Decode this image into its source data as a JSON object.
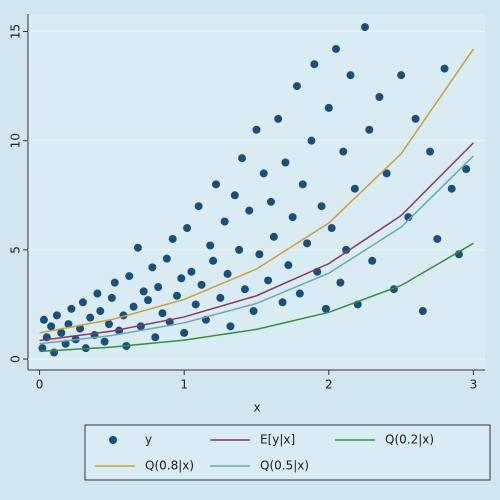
{
  "chart_data": {
    "type": "scatter",
    "x_label": "x",
    "xlim": [
      -0.08,
      3.08
    ],
    "xticks": [
      0,
      1,
      2,
      3
    ],
    "ylim": [
      -0.5,
      15.8
    ],
    "yticks": [
      0,
      5,
      10,
      15
    ],
    "grid": true,
    "series": [
      {
        "name": "y",
        "type": "scatter",
        "color": "#1b4f7b",
        "x": [
          0.02,
          0.03,
          0.05,
          0.08,
          0.1,
          0.12,
          0.15,
          0.18,
          0.2,
          0.22,
          0.25,
          0.28,
          0.3,
          0.32,
          0.35,
          0.38,
          0.4,
          0.42,
          0.45,
          0.48,
          0.5,
          0.52,
          0.55,
          0.58,
          0.6,
          0.62,
          0.65,
          0.68,
          0.7,
          0.72,
          0.75,
          0.78,
          0.8,
          0.82,
          0.85,
          0.88,
          0.9,
          0.92,
          0.95,
          0.98,
          1.0,
          1.02,
          1.05,
          1.08,
          1.1,
          1.12,
          1.15,
          1.18,
          1.2,
          1.22,
          1.25,
          1.28,
          1.3,
          1.32,
          1.35,
          1.38,
          1.4,
          1.42,
          1.45,
          1.48,
          1.5,
          1.52,
          1.55,
          1.58,
          1.6,
          1.62,
          1.65,
          1.68,
          1.7,
          1.72,
          1.75,
          1.78,
          1.8,
          1.82,
          1.85,
          1.88,
          1.9,
          1.92,
          1.95,
          1.98,
          2.0,
          2.02,
          2.05,
          2.08,
          2.1,
          2.12,
          2.15,
          2.18,
          2.2,
          2.25,
          2.28,
          2.3,
          2.35,
          2.4,
          2.45,
          2.5,
          2.55,
          2.6,
          2.65,
          2.7,
          2.75,
          2.8,
          2.85,
          2.9,
          2.95
        ],
        "values": [
          0.5,
          1.8,
          1.0,
          1.5,
          0.3,
          2.0,
          1.2,
          0.7,
          1.6,
          2.3,
          0.9,
          1.4,
          2.6,
          0.5,
          1.9,
          1.1,
          3.0,
          2.2,
          0.8,
          1.6,
          2.8,
          3.5,
          1.3,
          2.0,
          0.6,
          3.8,
          2.4,
          5.1,
          1.5,
          3.1,
          2.7,
          4.2,
          1.0,
          3.3,
          2.1,
          4.6,
          1.7,
          5.5,
          2.9,
          3.7,
          1.2,
          6.0,
          4.0,
          2.5,
          7.0,
          3.4,
          1.8,
          5.2,
          4.5,
          8.0,
          2.8,
          6.3,
          3.9,
          1.5,
          7.5,
          5.0,
          9.2,
          3.2,
          6.8,
          2.2,
          10.5,
          4.8,
          8.5,
          3.6,
          7.2,
          5.6,
          11.0,
          2.6,
          9.0,
          4.3,
          6.5,
          12.5,
          3.0,
          8.0,
          5.3,
          10.0,
          13.5,
          4.0,
          7.0,
          2.3,
          11.5,
          6.0,
          14.2,
          3.5,
          9.5,
          5.0,
          13.0,
          7.8,
          2.5,
          15.2,
          10.5,
          4.5,
          12.0,
          8.5,
          3.2,
          13.0,
          6.5,
          11.0,
          2.2,
          9.5,
          5.5,
          13.3,
          7.8,
          4.8,
          8.7
        ]
      },
      {
        "name": "E[y|x]",
        "type": "line",
        "color": "#8a3a62",
        "x": [
          0,
          0.5,
          1,
          1.5,
          2,
          2.5,
          3
        ],
        "values": [
          0.85,
          1.28,
          1.93,
          2.9,
          4.37,
          6.57,
          9.9
        ]
      },
      {
        "name": "Q(0.2|x)",
        "type": "line",
        "color": "#3d8b3d",
        "x": [
          0,
          0.5,
          1,
          1.5,
          2,
          2.5,
          3
        ],
        "values": [
          0.35,
          0.55,
          0.87,
          1.36,
          2.14,
          3.37,
          5.3
        ]
      },
      {
        "name": "Q(0.8|x)",
        "type": "line",
        "color": "#c9a23a",
        "x": [
          0,
          0.5,
          1,
          1.5,
          2,
          2.5,
          3
        ],
        "values": [
          1.2,
          1.81,
          2.73,
          4.12,
          6.23,
          9.4,
          14.2
        ]
      },
      {
        "name": "Q(0.5|x)",
        "type": "line",
        "color": "#6ba7b9",
        "x": [
          0,
          0.5,
          1,
          1.5,
          2,
          2.5,
          3
        ],
        "values": [
          0.7,
          1.08,
          1.66,
          2.55,
          3.93,
          6.04,
          9.3
        ]
      }
    ]
  }
}
